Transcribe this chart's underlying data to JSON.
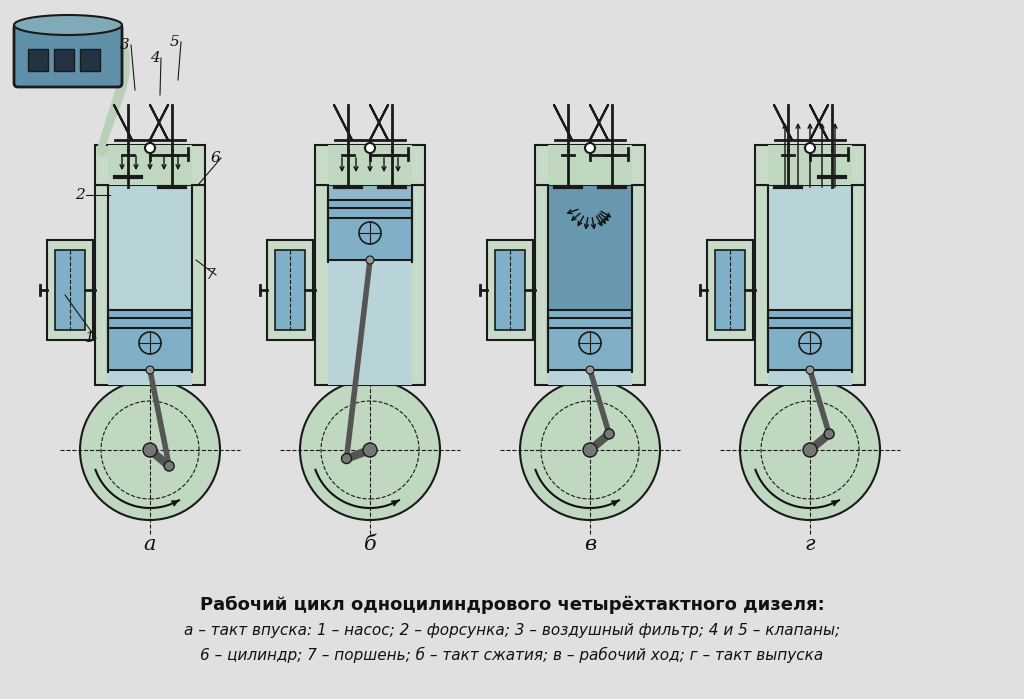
{
  "bg_color": "#e0e0e0",
  "cyl_bg": "#c8dac8",
  "cyl_inner_light": "#b8d4d8",
  "cyl_inner_mid": "#90b8c8",
  "cyl_inner_dark": "#6898b0",
  "piston_fill": "#80b0c8",
  "crankcase_fill": "#c0d8c0",
  "valve_fill": "#c0d8c0",
  "side_box_fill": "#80afc8",
  "filter_box_fill": "#6090a8",
  "filter_top_fill": "#80aab8",
  "line_color": "#1a1a1a",
  "arrow_color": "#111111",
  "label_color": "#111111",
  "title_bold": "Рабочий цикл одноцилиндрового четырёхтактного дизеля:",
  "line1": "а – такт впуска: 1 – насос; 2 – форсунка; 3 – воздушный фильтр; 4 и 5 – клапаны;",
  "line2": "6 – цилиндр; 7 – поршень; б – такт сжатия; в – рабочий ход; г – такт выпуска",
  "phase_labels": [
    "а",
    "б",
    "в",
    "г"
  ]
}
